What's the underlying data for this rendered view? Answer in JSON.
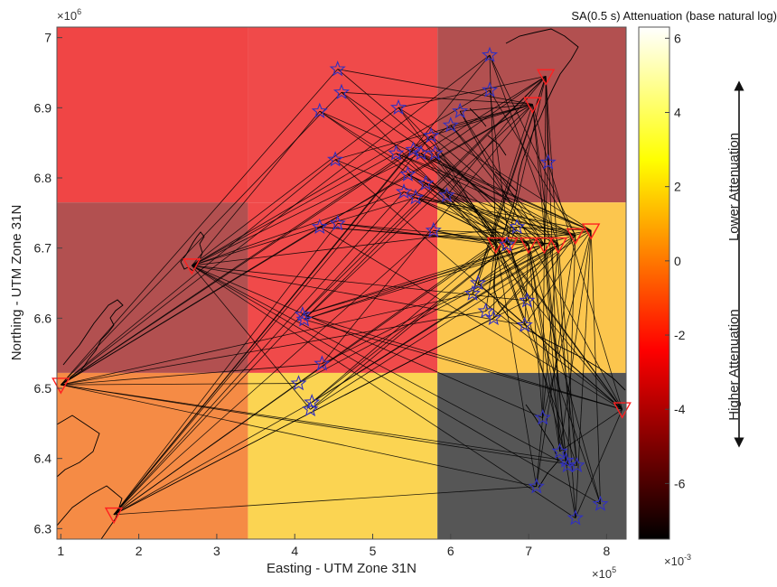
{
  "chart_data": {
    "type": "heatmap",
    "xlabel": "Easting - UTM Zone 31N",
    "ylabel": "Northing - UTM Zone 31N",
    "x_multiplier": {
      "base": "×10",
      "exp": "5"
    },
    "y_multiplier": {
      "base": "×10",
      "exp": "6"
    },
    "xlim": [
      0.95,
      8.25
    ],
    "ylim": [
      6.285,
      7.015
    ],
    "x_ticks": [
      1,
      2,
      3,
      4,
      5,
      6,
      7,
      8
    ],
    "y_ticks": [
      6.3,
      6.4,
      6.5,
      6.6,
      6.7,
      6.8,
      6.9,
      7.0
    ],
    "x_tick_labels": [
      "1",
      "2",
      "3",
      "4",
      "5",
      "6",
      "7",
      "8"
    ],
    "y_tick_labels": [
      "6.3",
      "6.4",
      "6.5",
      "6.6",
      "6.7",
      "6.8",
      "6.9",
      "7"
    ],
    "grid": false,
    "grid_cells": [
      {
        "x": [
          0.95,
          3.4
        ],
        "y": [
          6.765,
          7.015
        ],
        "value": -0.0024,
        "color": "#f04545"
      },
      {
        "x": [
          3.4,
          5.83
        ],
        "y": [
          6.765,
          7.015
        ],
        "value": -0.0023,
        "color": "#f04a4a"
      },
      {
        "x": [
          5.83,
          8.25
        ],
        "y": [
          6.765,
          7.015
        ],
        "value": -0.0045,
        "color": "#b25050"
      },
      {
        "x": [
          0.95,
          3.4
        ],
        "y": [
          6.522,
          6.765
        ],
        "value": -0.0045,
        "color": "#b25050"
      },
      {
        "x": [
          3.4,
          5.83
        ],
        "y": [
          6.522,
          6.765
        ],
        "value": -0.0023,
        "color": "#f04a4a"
      },
      {
        "x": [
          5.83,
          8.25
        ],
        "y": [
          6.522,
          6.765
        ],
        "value": 0.0033,
        "color": "#fcc64e"
      },
      {
        "x": [
          0.95,
          3.4
        ],
        "y": [
          6.285,
          6.522
        ],
        "value": 0.0005,
        "color": "#f58b45"
      },
      {
        "x": [
          3.4,
          5.83
        ],
        "y": [
          6.285,
          6.522
        ],
        "value": 0.0035,
        "color": "#fbd452"
      },
      {
        "x": [
          5.83,
          8.25
        ],
        "y": [
          6.285,
          6.522
        ],
        "value": -0.0065,
        "color": "#565656"
      }
    ],
    "stations": [
      {
        "x": 1.0,
        "y": 6.505
      },
      {
        "x": 1.68,
        "y": 6.32
      },
      {
        "x": 2.68,
        "y": 6.675
      },
      {
        "x": 7.22,
        "y": 6.945
      },
      {
        "x": 7.05,
        "y": 6.905
      },
      {
        "x": 6.58,
        "y": 6.705
      },
      {
        "x": 6.75,
        "y": 6.705
      },
      {
        "x": 7.0,
        "y": 6.705
      },
      {
        "x": 7.2,
        "y": 6.705
      },
      {
        "x": 7.38,
        "y": 6.705
      },
      {
        "x": 7.6,
        "y": 6.718
      },
      {
        "x": 7.8,
        "y": 6.725
      },
      {
        "x": 8.2,
        "y": 6.47
      }
    ],
    "events": [
      {
        "x": 4.55,
        "y": 6.955
      },
      {
        "x": 4.6,
        "y": 6.922
      },
      {
        "x": 6.5,
        "y": 6.975
      },
      {
        "x": 6.5,
        "y": 6.925
      },
      {
        "x": 4.32,
        "y": 6.895
      },
      {
        "x": 5.33,
        "y": 6.9
      },
      {
        "x": 6.12,
        "y": 6.895
      },
      {
        "x": 6.0,
        "y": 6.875
      },
      {
        "x": 5.75,
        "y": 6.86
      },
      {
        "x": 5.52,
        "y": 6.84
      },
      {
        "x": 5.3,
        "y": 6.835
      },
      {
        "x": 5.62,
        "y": 6.835
      },
      {
        "x": 5.8,
        "y": 6.835
      },
      {
        "x": 4.52,
        "y": 6.826
      },
      {
        "x": 5.45,
        "y": 6.805
      },
      {
        "x": 5.68,
        "y": 6.792
      },
      {
        "x": 5.4,
        "y": 6.78
      },
      {
        "x": 5.55,
        "y": 6.772
      },
      {
        "x": 5.95,
        "y": 6.775
      },
      {
        "x": 7.25,
        "y": 6.822
      },
      {
        "x": 4.32,
        "y": 6.73
      },
      {
        "x": 4.55,
        "y": 6.735
      },
      {
        "x": 5.78,
        "y": 6.725
      },
      {
        "x": 6.85,
        "y": 6.73
      },
      {
        "x": 6.72,
        "y": 6.705
      },
      {
        "x": 6.35,
        "y": 6.65
      },
      {
        "x": 6.28,
        "y": 6.635
      },
      {
        "x": 6.45,
        "y": 6.61
      },
      {
        "x": 6.55,
        "y": 6.6
      },
      {
        "x": 6.98,
        "y": 6.625
      },
      {
        "x": 6.95,
        "y": 6.59
      },
      {
        "x": 4.1,
        "y": 6.605
      },
      {
        "x": 4.12,
        "y": 6.598
      },
      {
        "x": 4.35,
        "y": 6.535
      },
      {
        "x": 4.05,
        "y": 6.507
      },
      {
        "x": 4.22,
        "y": 6.48
      },
      {
        "x": 4.2,
        "y": 6.47
      },
      {
        "x": 7.18,
        "y": 6.458
      },
      {
        "x": 7.4,
        "y": 6.41
      },
      {
        "x": 7.48,
        "y": 6.397
      },
      {
        "x": 7.62,
        "y": 6.39
      },
      {
        "x": 7.1,
        "y": 6.36
      },
      {
        "x": 7.5,
        "y": 6.39
      },
      {
        "x": 7.92,
        "y": 6.335
      },
      {
        "x": 7.6,
        "y": 6.315
      }
    ],
    "colorbar": {
      "title": "SA(0.5 s) Attenuation (base natural log)",
      "range": [
        -7.5,
        6.3
      ],
      "ticks": [
        6,
        4,
        2,
        0,
        -2,
        -4,
        -6
      ],
      "tick_labels": [
        "6",
        "4",
        "2",
        "0",
        "-2",
        "-4",
        "-6"
      ],
      "multiplier": {
        "base": "×10",
        "exp": "-3"
      },
      "colormap": "hot",
      "annotations": {
        "upper": "Lower Attenuation",
        "lower": "Higher Attenuation"
      }
    },
    "colors": {
      "station": "#ff2020",
      "event": "#3030c0",
      "path": "#000000",
      "coast": "#000000"
    }
  }
}
